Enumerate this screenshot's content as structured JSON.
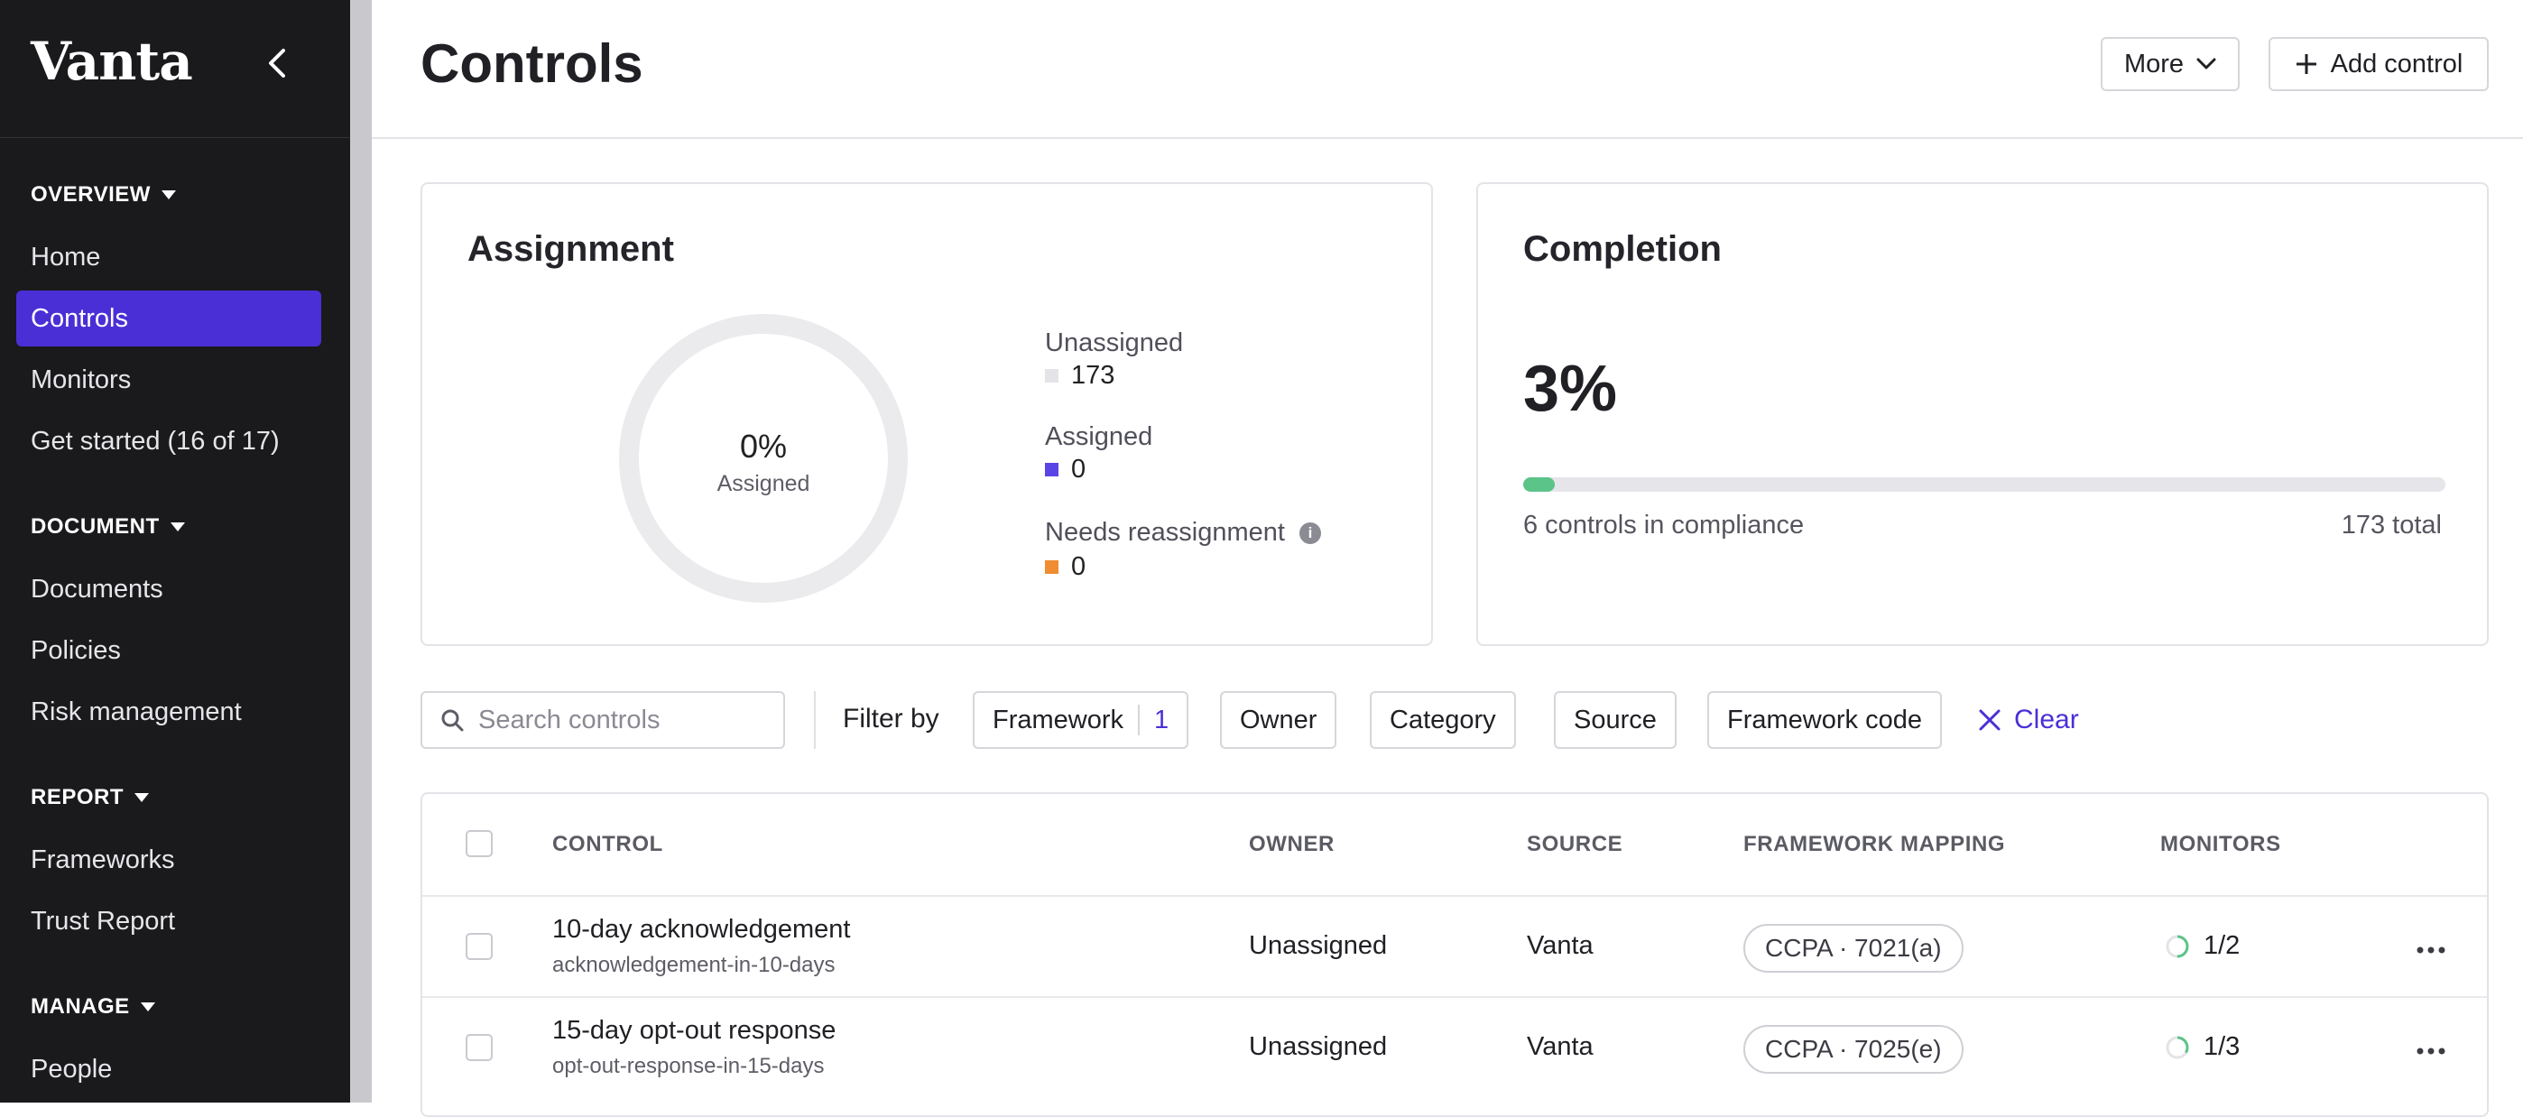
{
  "brand": "Vanta",
  "sidebar": {
    "sections": [
      {
        "title": "OVERVIEW",
        "items": [
          "Home",
          "Controls",
          "Monitors",
          "Get started (16 of 17)"
        ]
      },
      {
        "title": "DOCUMENT",
        "items": [
          "Documents",
          "Policies",
          "Risk management"
        ]
      },
      {
        "title": "REPORT",
        "items": [
          "Frameworks",
          "Trust Report"
        ]
      },
      {
        "title": "MANAGE",
        "items": [
          "People"
        ]
      }
    ],
    "active": "Controls"
  },
  "header": {
    "title": "Controls",
    "more_label": "More",
    "add_label": "Add control"
  },
  "assignment": {
    "title": "Assignment",
    "percent": "0%",
    "percent_label": "Assigned",
    "assigned_fraction": 0,
    "legend": [
      {
        "label": "Unassigned",
        "value": "173",
        "color": "#e4e4e8"
      },
      {
        "label": "Assigned",
        "value": "0",
        "color": "#5b44e6"
      },
      {
        "label": "Needs reassignment",
        "value": "0",
        "color": "#f08c32"
      }
    ]
  },
  "completion": {
    "title": "Completion",
    "percent": "3%",
    "fill_fraction": 0.03,
    "in_compliance": "6 controls in compliance",
    "total": "173 total"
  },
  "filters": {
    "search_placeholder": "Search controls",
    "filter_by": "Filter by",
    "framework": "Framework",
    "framework_count": "1",
    "owner": "Owner",
    "category": "Category",
    "source": "Source",
    "framework_code": "Framework code",
    "clear": "Clear"
  },
  "table": {
    "headers": {
      "control": "CONTROL",
      "owner": "OWNER",
      "source": "SOURCE",
      "mapping": "FRAMEWORK MAPPING",
      "monitors": "MONITORS"
    },
    "rows": [
      {
        "name": "10-day acknowledgement",
        "slug": "acknowledgement-in-10-days",
        "owner": "Unassigned",
        "source": "Vanta",
        "mapping": "CCPA · 7021(a)",
        "monitors": "1/2",
        "monitor_fraction": 0.5
      },
      {
        "name": "15-day opt-out response",
        "slug": "opt-out-response-in-15-days",
        "owner": "Unassigned",
        "source": "Vanta",
        "mapping": "CCPA · 7025(e)",
        "monitors": "1/3",
        "monitor_fraction": 0.333
      }
    ]
  },
  "colors": {
    "accent": "#4b2fd6",
    "success": "#5bc489"
  }
}
